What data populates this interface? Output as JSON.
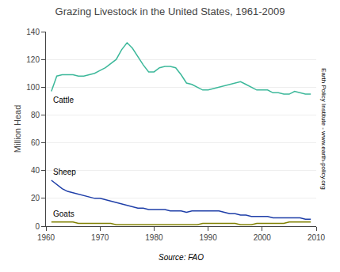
{
  "chart_data": {
    "type": "line",
    "title": "Grazing Livestock in the United States, 1961-2009",
    "ylabel": "Million Head",
    "annotations": [
      "Source: FAO",
      "Earth Policy Institute - www.earth-policy.org"
    ],
    "x": [
      1961,
      1962,
      1963,
      1964,
      1965,
      1966,
      1967,
      1968,
      1969,
      1970,
      1971,
      1972,
      1973,
      1974,
      1975,
      1976,
      1977,
      1978,
      1979,
      1980,
      1981,
      1982,
      1983,
      1984,
      1985,
      1986,
      1987,
      1988,
      1989,
      1990,
      1991,
      1992,
      1993,
      1994,
      1995,
      1996,
      1997,
      1998,
      1999,
      2000,
      2001,
      2002,
      2003,
      2004,
      2005,
      2006,
      2007,
      2008,
      2009
    ],
    "series": [
      {
        "name": "Cattle",
        "color": "#3cb89a",
        "values": [
          97,
          108,
          109,
          109,
          109,
          108,
          108,
          109,
          110,
          112,
          114,
          117,
          120,
          127,
          132,
          128,
          122,
          116,
          111,
          111,
          114,
          115,
          115,
          114,
          109,
          103,
          102,
          100,
          98,
          98,
          99,
          100,
          101,
          102,
          103,
          104,
          102,
          100,
          98,
          98,
          98,
          96,
          96,
          95,
          95,
          97,
          96,
          95,
          95
        ]
      },
      {
        "name": "Sheep",
        "color": "#1e3ea8",
        "values": [
          33,
          30,
          27,
          25,
          24,
          23,
          22,
          21,
          20,
          20,
          19,
          18,
          17,
          16,
          15,
          14,
          13,
          13,
          12,
          12,
          12,
          12,
          11,
          11,
          11,
          10,
          11,
          11,
          11,
          11,
          11,
          11,
          10,
          9,
          9,
          8,
          8,
          7,
          7,
          7,
          7,
          6,
          6,
          6,
          6,
          6,
          6,
          5,
          5
        ]
      },
      {
        "name": "Goats",
        "color": "#808000",
        "values": [
          3,
          3,
          3,
          3,
          3,
          2,
          2,
          2,
          2,
          2,
          2,
          2,
          1,
          1,
          1,
          1,
          1,
          1,
          1,
          1,
          1,
          1,
          1,
          1,
          1,
          1,
          1,
          1,
          2,
          2,
          2,
          2,
          2,
          2,
          2,
          1,
          1,
          1,
          2,
          2,
          2,
          2,
          2,
          2,
          3,
          3,
          3,
          3,
          3
        ]
      }
    ],
    "xlim": [
      1960,
      2010
    ],
    "ylim": [
      0,
      140
    ],
    "xticks": [
      1960,
      1970,
      1980,
      1990,
      2000,
      2010
    ],
    "yticks": [
      0,
      20,
      40,
      60,
      80,
      100,
      120,
      140
    ],
    "grid": "y"
  }
}
